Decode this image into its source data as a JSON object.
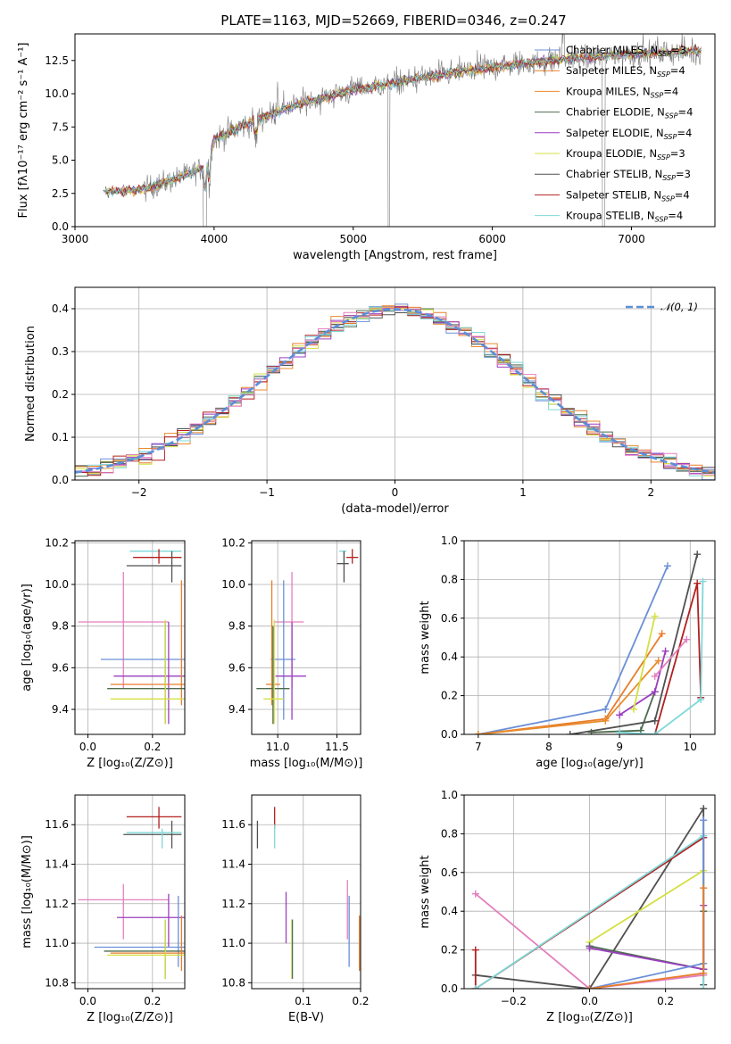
{
  "colors": [
    "#6a8fd8",
    "#e87d2b",
    "#e88b2b",
    "#4e6b4e",
    "#9a3fbf",
    "#d4e040",
    "#505050",
    "#b22020",
    "#7fd8d8",
    "#e37fbf"
  ],
  "chart_data": [
    {
      "id": "spectrum",
      "type": "line",
      "title": "PLATE=1163, MJD=52669, FIBERID=0346, z=0.247",
      "xlabel": "wavelength [Angstrom, rest frame]",
      "ylabel": "Flux [fλ10⁻¹⁷ erg cm⁻² s⁻¹ A⁻¹]",
      "xlim": [
        3000,
        7600
      ],
      "ylim": [
        0,
        14.5
      ],
      "xticks": [
        3000,
        4000,
        5000,
        6000,
        7000
      ],
      "yticks": [
        0.0,
        2.5,
        5.0,
        7.5,
        10.0,
        12.5
      ],
      "legend_position": "right",
      "series": [
        {
          "name": "Chabrier MILES, N_SSP=3",
          "color": "#6a8fd8"
        },
        {
          "name": "Salpeter MILES, N_SSP=4",
          "color": "#e87d2b"
        },
        {
          "name": "Kroupa MILES, N_SSP=4",
          "color": "#e88b2b"
        },
        {
          "name": "Chabrier ELODIE, N_SSP=4",
          "color": "#4e6b4e"
        },
        {
          "name": "Salpeter ELODIE, N_SSP=4",
          "color": "#9a3fbf"
        },
        {
          "name": "Kroupa ELODIE, N_SSP=3",
          "color": "#d4e040"
        },
        {
          "name": "Chabrier STELIB, N_SSP=3",
          "color": "#505050"
        },
        {
          "name": "Salpeter STELIB, N_SSP=4",
          "color": "#b22020"
        },
        {
          "name": "Kroupa STELIB, N_SSP=4",
          "color": "#7fd8d8"
        }
      ],
      "continuum_x": [
        3200,
        3500,
        3700,
        3950,
        4000,
        4300,
        4600,
        5000,
        5500,
        6000,
        6500,
        7000,
        7400
      ],
      "continuum_y": [
        2.6,
        2.8,
        3.5,
        4.5,
        6.6,
        8.0,
        9.2,
        10.3,
        11.2,
        12.0,
        12.6,
        13.0,
        13.2
      ]
    },
    {
      "id": "residuals",
      "type": "histogram",
      "xlabel": "(data-model)/error",
      "ylabel": "Normed distribution",
      "xlim": [
        -2.5,
        2.5
      ],
      "ylim": [
        0,
        0.45
      ],
      "xticks": [
        -2,
        -1,
        0,
        1,
        2
      ],
      "yticks": [
        0.0,
        0.1,
        0.2,
        0.3,
        0.4
      ],
      "legend": "𝒩(0, 1)",
      "legend_position": "top-right",
      "bin_width": 0.1
    },
    {
      "id": "age-vs-z",
      "type": "scatter",
      "xlabel": "Z [log₁₀(Z/Z⊙)]",
      "ylabel": "age  [log₁₀(age/yr)]",
      "xlim": [
        -0.04,
        0.3
      ],
      "ylim": [
        9.28,
        10.21
      ],
      "xticks": [
        0.0,
        0.2
      ],
      "yticks": [
        9.4,
        9.6,
        9.8,
        10.0,
        10.2
      ],
      "errorbars": [
        {
          "color": "#7fd8d8",
          "x": 0.23,
          "y": 10.16,
          "xlo": 0.13,
          "xhi": 0.29,
          "ylo": 10.16,
          "yhi": 10.16
        },
        {
          "color": "#b22020",
          "x": 0.22,
          "y": 10.13,
          "xlo": 0.14,
          "xhi": 0.29,
          "ylo": 10.1,
          "yhi": 10.17
        },
        {
          "color": "#505050",
          "x": 0.26,
          "y": 10.09,
          "xlo": 0.12,
          "xhi": 0.29,
          "ylo": 10.01,
          "yhi": 10.16
        },
        {
          "color": "#e37fbf",
          "x": 0.11,
          "y": 9.82,
          "xlo": -0.03,
          "xhi": 0.25,
          "ylo": 9.5,
          "yhi": 10.06
        },
        {
          "color": "#6a8fd8",
          "x": 0.24,
          "y": 9.64,
          "xlo": 0.04,
          "xhi": 0.3,
          "ylo": 9.35,
          "yhi": 9.82
        },
        {
          "color": "#9a3fbf",
          "x": 0.25,
          "y": 9.56,
          "xlo": 0.08,
          "xhi": 0.3,
          "ylo": 9.33,
          "yhi": 9.82
        },
        {
          "color": "#e87d2b",
          "x": 0.29,
          "y": 9.52,
          "xlo": 0.07,
          "xhi": 0.3,
          "ylo": 9.42,
          "yhi": 10.02
        },
        {
          "color": "#4e6b4e",
          "x": 0.24,
          "y": 9.5,
          "xlo": 0.06,
          "xhi": 0.3,
          "ylo": 9.33,
          "yhi": 9.8
        },
        {
          "color": "#d4e040",
          "x": 0.24,
          "y": 9.45,
          "xlo": 0.07,
          "xhi": 0.3,
          "ylo": 9.33,
          "yhi": 9.83
        }
      ]
    },
    {
      "id": "age-vs-mass",
      "type": "scatter",
      "xlabel": "mass [log₁₀(M/M⊙)]",
      "ylabel": "",
      "xlim": [
        10.78,
        11.7
      ],
      "ylim": [
        9.28,
        10.21
      ],
      "xticks": [
        11.0,
        11.5
      ],
      "yticks": [
        9.4,
        9.6,
        9.8,
        10.0,
        10.2
      ],
      "errorbars": [
        {
          "color": "#7fd8d8",
          "x": 11.56,
          "y": 10.16,
          "xlo": 11.52,
          "xhi": 11.58,
          "ylo": 10.1,
          "yhi": 10.16
        },
        {
          "color": "#b22020",
          "x": 11.63,
          "y": 10.13,
          "xlo": 11.58,
          "xhi": 11.68,
          "ylo": 10.1,
          "yhi": 10.17
        },
        {
          "color": "#505050",
          "x": 11.56,
          "y": 10.1,
          "xlo": 11.5,
          "xhi": 11.6,
          "ylo": 10.01,
          "yhi": 10.16
        },
        {
          "color": "#e37fbf",
          "x": 11.12,
          "y": 9.82,
          "xlo": 10.97,
          "xhi": 11.22,
          "ylo": 9.5,
          "yhi": 10.06
        },
        {
          "color": "#6a8fd8",
          "x": 11.05,
          "y": 9.64,
          "xlo": 10.94,
          "xhi": 11.15,
          "ylo": 9.35,
          "yhi": 10.02
        },
        {
          "color": "#9a3fbf",
          "x": 11.12,
          "y": 9.56,
          "xlo": 10.98,
          "xhi": 11.24,
          "ylo": 9.35,
          "yhi": 9.82
        },
        {
          "color": "#e87d2b",
          "x": 10.95,
          "y": 9.52,
          "xlo": 10.9,
          "xhi": 11.02,
          "ylo": 9.42,
          "yhi": 10.02
        },
        {
          "color": "#4e6b4e",
          "x": 10.96,
          "y": 9.5,
          "xlo": 10.82,
          "xhi": 11.1,
          "ylo": 9.33,
          "yhi": 9.8
        },
        {
          "color": "#d4e040",
          "x": 10.97,
          "y": 9.45,
          "xlo": 10.88,
          "xhi": 11.05,
          "ylo": 9.33,
          "yhi": 9.83
        }
      ]
    },
    {
      "id": "weight-vs-age",
      "type": "line",
      "xlabel": "age  [log₁₀(age/yr)]",
      "ylabel": "mass weight",
      "xlim": [
        6.8,
        10.35
      ],
      "ylim": [
        0,
        1.0
      ],
      "xticks": [
        7,
        8,
        9,
        10
      ],
      "yticks": [
        0.0,
        0.2,
        0.4,
        0.6,
        0.8,
        1.0
      ],
      "series": [
        {
          "color": "#6a8fd8",
          "x": [
            7.0,
            8.8,
            9.68
          ],
          "y": [
            0.0,
            0.13,
            0.87
          ]
        },
        {
          "color": "#e87d2b",
          "x": [
            7.0,
            8.8,
            9.6
          ],
          "y": [
            0.0,
            0.08,
            0.52
          ]
        },
        {
          "color": "#e88b2b",
          "x": [
            7.0,
            8.8,
            9.55
          ],
          "y": [
            0.0,
            0.07,
            0.38
          ]
        },
        {
          "color": "#4e6b4e",
          "x": [
            8.6,
            9.3,
            9.5
          ],
          "y": [
            0.01,
            0.02,
            0.22
          ]
        },
        {
          "color": "#9a3fbf",
          "x": [
            9.0,
            9.5,
            9.65
          ],
          "y": [
            0.1,
            0.22,
            0.43
          ]
        },
        {
          "color": "#d4e040",
          "x": [
            9.2,
            9.5
          ],
          "y": [
            0.13,
            0.61
          ]
        },
        {
          "color": "#505050",
          "x": [
            8.3,
            9.5,
            10.1
          ],
          "y": [
            0.0,
            0.07,
            0.93
          ]
        },
        {
          "color": "#b22020",
          "x": [
            9.5,
            10.1,
            10.15
          ],
          "y": [
            0.0,
            0.78,
            0.19
          ]
        },
        {
          "color": "#7fd8d8",
          "x": [
            9.0,
            9.5,
            10.15,
            10.18
          ],
          "y": [
            0.01,
            0.0,
            0.18,
            0.79
          ]
        },
        {
          "color": "#e37fbf",
          "x": [
            9.5,
            9.95
          ],
          "y": [
            0.3,
            0.49
          ]
        }
      ]
    },
    {
      "id": "mass-vs-z",
      "type": "scatter",
      "xlabel": "Z [log₁₀(Z/Z⊙)]",
      "ylabel": "mass [log₁₀(M/M⊙)]",
      "xlim": [
        -0.04,
        0.3
      ],
      "ylim": [
        10.77,
        11.75
      ],
      "xticks": [
        0.0,
        0.2
      ],
      "yticks": [
        10.8,
        11.0,
        11.2,
        11.4,
        11.6
      ],
      "errorbars": [
        {
          "color": "#b22020",
          "x": 0.22,
          "y": 11.64,
          "xlo": 0.12,
          "xhi": 0.29,
          "ylo": 11.58,
          "yhi": 11.69
        },
        {
          "color": "#505050",
          "x": 0.26,
          "y": 11.55,
          "xlo": 0.11,
          "xhi": 0.29,
          "ylo": 11.48,
          "yhi": 11.62
        },
        {
          "color": "#7fd8d8",
          "x": 0.23,
          "y": 11.56,
          "xlo": 0.12,
          "xhi": 0.29,
          "ylo": 11.48,
          "yhi": 11.58
        },
        {
          "color": "#e37fbf",
          "x": 0.11,
          "y": 11.22,
          "xlo": -0.03,
          "xhi": 0.25,
          "ylo": 11.02,
          "yhi": 11.3
        },
        {
          "color": "#9a3fbf",
          "x": 0.25,
          "y": 11.13,
          "xlo": 0.09,
          "xhi": 0.3,
          "ylo": 10.98,
          "yhi": 11.25
        },
        {
          "color": "#6a8fd8",
          "x": 0.28,
          "y": 10.98,
          "xlo": 0.02,
          "xhi": 0.3,
          "ylo": 10.88,
          "yhi": 11.24
        },
        {
          "color": "#4e6b4e",
          "x": 0.24,
          "y": 10.96,
          "xlo": 0.05,
          "xhi": 0.3,
          "ylo": 10.82,
          "yhi": 11.12
        },
        {
          "color": "#e87d2b",
          "x": 0.29,
          "y": 10.95,
          "xlo": 0.07,
          "xhi": 0.3,
          "ylo": 10.86,
          "yhi": 11.14
        },
        {
          "color": "#d4e040",
          "x": 0.24,
          "y": 10.94,
          "xlo": 0.06,
          "xhi": 0.3,
          "ylo": 10.82,
          "yhi": 11.12
        }
      ]
    },
    {
      "id": "mass-vs-ebv",
      "type": "scatter",
      "xlabel": "E(B-V)",
      "ylabel": "",
      "xlim": [
        0.01,
        0.2
      ],
      "ylim": [
        10.77,
        11.75
      ],
      "xticks": [
        0.1,
        0.2
      ],
      "yticks": [
        10.8,
        11.0,
        11.2,
        11.4,
        11.6
      ],
      "errorbars": [
        {
          "color": "#b22020",
          "x": 0.05,
          "y": 11.64,
          "xlo": 0.05,
          "xhi": 0.05,
          "ylo": 11.58,
          "yhi": 11.69
        },
        {
          "color": "#505050",
          "x": 0.02,
          "y": 11.55,
          "xlo": 0.02,
          "xhi": 0.02,
          "ylo": 11.48,
          "yhi": 11.62
        },
        {
          "color": "#7fd8d8",
          "x": 0.05,
          "y": 11.56,
          "xlo": 0.05,
          "xhi": 0.05,
          "ylo": 11.48,
          "yhi": 11.6
        },
        {
          "color": "#9a3fbf",
          "x": 0.07,
          "y": 11.13,
          "xlo": 0.07,
          "xhi": 0.07,
          "ylo": 11.0,
          "yhi": 11.26
        },
        {
          "color": "#d4e040",
          "x": 0.08,
          "y": 10.95,
          "xlo": 0.08,
          "xhi": 0.08,
          "ylo": 10.82,
          "yhi": 11.12
        },
        {
          "color": "#4e6b4e",
          "x": 0.081,
          "y": 10.96,
          "xlo": 0.081,
          "xhi": 0.081,
          "ylo": 10.82,
          "yhi": 11.12
        },
        {
          "color": "#e37fbf",
          "x": 0.177,
          "y": 11.22,
          "xlo": 0.177,
          "xhi": 0.177,
          "ylo": 11.02,
          "yhi": 11.32
        },
        {
          "color": "#6a8fd8",
          "x": 0.18,
          "y": 10.98,
          "xlo": 0.18,
          "xhi": 0.18,
          "ylo": 10.88,
          "yhi": 11.24
        },
        {
          "color": "#e87d2b",
          "x": 0.198,
          "y": 10.95,
          "xlo": 0.198,
          "xhi": 0.198,
          "ylo": 10.86,
          "yhi": 11.14
        }
      ]
    },
    {
      "id": "weight-vs-z",
      "type": "line",
      "xlabel": "Z [log₁₀(Z/Z⊙)]",
      "ylabel": "mass weight",
      "xlim": [
        -0.33,
        0.33
      ],
      "ylim": [
        0,
        1.0
      ],
      "xticks": [
        -0.2,
        0.0,
        0.2
      ],
      "yticks": [
        0.0,
        0.2,
        0.4,
        0.6,
        0.8,
        1.0
      ],
      "series": [
        {
          "color": "#e37fbf",
          "x": [
            -0.3,
            0.0,
            0.3
          ],
          "y": [
            0.49,
            0.0,
            0.07
          ]
        },
        {
          "color": "#505050",
          "x": [
            -0.3,
            0.0,
            0.3,
            0.3
          ],
          "y": [
            0.07,
            0.0,
            0.93,
            0.02
          ]
        },
        {
          "color": "#b22020",
          "x": [
            -0.3,
            -0.3,
            0.3,
            0.3
          ],
          "y": [
            0.2,
            0.0,
            0.78,
            0.1
          ]
        },
        {
          "color": "#7fd8d8",
          "x": [
            -0.3,
            0.3,
            0.3
          ],
          "y": [
            0.0,
            0.79,
            0.0
          ]
        },
        {
          "color": "#d4e040",
          "x": [
            0.0,
            0.3,
            0.3
          ],
          "y": [
            0.24,
            0.61,
            0.13
          ]
        },
        {
          "color": "#4e6b4e",
          "x": [
            0.0,
            0.3,
            0.3
          ],
          "y": [
            0.22,
            0.1,
            0.4
          ]
        },
        {
          "color": "#9a3fbf",
          "x": [
            0.0,
            0.3,
            0.3
          ],
          "y": [
            0.21,
            0.1,
            0.43
          ]
        },
        {
          "color": "#6a8fd8",
          "x": [
            0.0,
            0.3,
            0.3
          ],
          "y": [
            0.0,
            0.13,
            0.87
          ]
        },
        {
          "color": "#e87d2b",
          "x": [
            0.0,
            0.3,
            0.3
          ],
          "y": [
            0.0,
            0.08,
            0.52
          ]
        }
      ]
    }
  ]
}
